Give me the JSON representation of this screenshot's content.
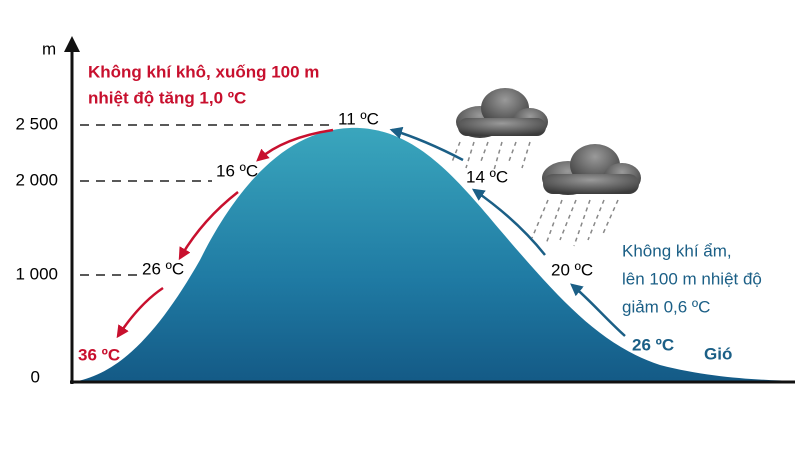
{
  "axis": {
    "unit": "m",
    "ticks": [
      "2 500",
      "2 000",
      "1 000",
      "0"
    ]
  },
  "dry_note": [
    "Không khí khô, xuống 100 m",
    "nhiệt độ tăng 1,0 ºC"
  ],
  "wet_note": [
    "Không khí ẩm,",
    "lên 100 m nhiệt độ",
    "giảm 0,6 ºC"
  ],
  "leeward_temperatures": [
    "11 ºC",
    "16 ºC",
    "26 ºC",
    "36 ºC"
  ],
  "windward_temperatures": [
    "14 ºC",
    "20 ºC",
    "26 ºC"
  ],
  "wind": "Gió"
}
